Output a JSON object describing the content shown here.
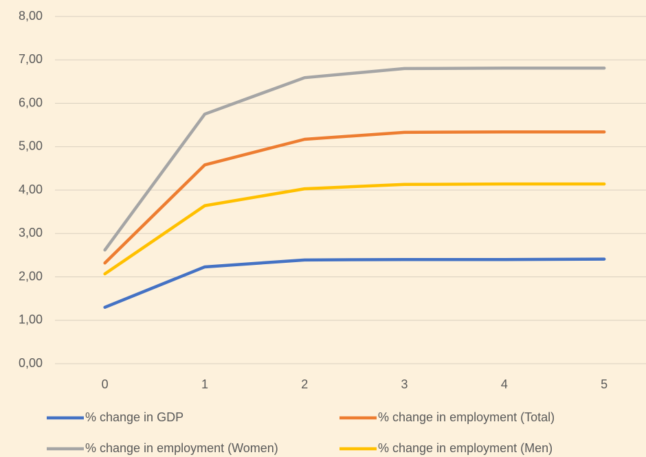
{
  "chart_data": {
    "type": "line",
    "categories": [
      "0",
      "1",
      "2",
      "3",
      "4",
      "5"
    ],
    "series": [
      {
        "name": "% change in GDP",
        "color": "#4472c4",
        "values": [
          1.3,
          2.23,
          2.39,
          2.4,
          2.4,
          2.41
        ]
      },
      {
        "name": "% change in employment (Total)",
        "color": "#ed7d31",
        "values": [
          2.32,
          4.58,
          5.17,
          5.33,
          5.34,
          5.34
        ]
      },
      {
        "name": "% change in employment (Women)",
        "color": "#a5a5a5",
        "values": [
          2.62,
          5.75,
          6.59,
          6.8,
          6.81,
          6.81
        ]
      },
      {
        "name": "% change in employment (Men)",
        "color": "#ffc000",
        "values": [
          2.07,
          3.64,
          4.03,
          4.13,
          4.14,
          4.14
        ]
      }
    ],
    "ylim": [
      0,
      8
    ],
    "yticks": [
      {
        "value": 0,
        "label": "0,00"
      },
      {
        "value": 1,
        "label": "1,00"
      },
      {
        "value": 2,
        "label": "2,00"
      },
      {
        "value": 3,
        "label": "3,00"
      },
      {
        "value": 4,
        "label": "4,00"
      },
      {
        "value": 5,
        "label": "5,00"
      },
      {
        "value": 6,
        "label": "6,00"
      },
      {
        "value": 7,
        "label": "7,00"
      },
      {
        "value": 8,
        "label": "8,00"
      }
    ],
    "grid": true,
    "legend": "bottom"
  }
}
